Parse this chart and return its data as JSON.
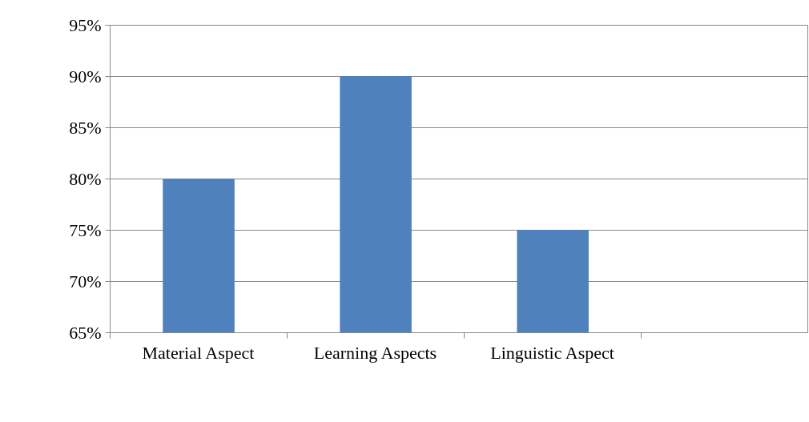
{
  "chart_data": {
    "type": "bar",
    "categories": [
      "Material Aspect",
      "Learning Aspects",
      "Linguistic Aspect",
      null
    ],
    "values": [
      80,
      90,
      75,
      null
    ],
    "color": "#4f81bd",
    "ylim": [
      65,
      95
    ],
    "yticks": [
      {
        "value": 65,
        "label": "65%"
      },
      {
        "value": 70,
        "label": "70%"
      },
      {
        "value": 75,
        "label": "75%"
      },
      {
        "value": 80,
        "label": "80%"
      },
      {
        "value": 85,
        "label": "85%"
      },
      {
        "value": 90,
        "label": "90%"
      },
      {
        "value": 95,
        "label": "95%"
      }
    ],
    "grid": "y",
    "legend": false
  }
}
